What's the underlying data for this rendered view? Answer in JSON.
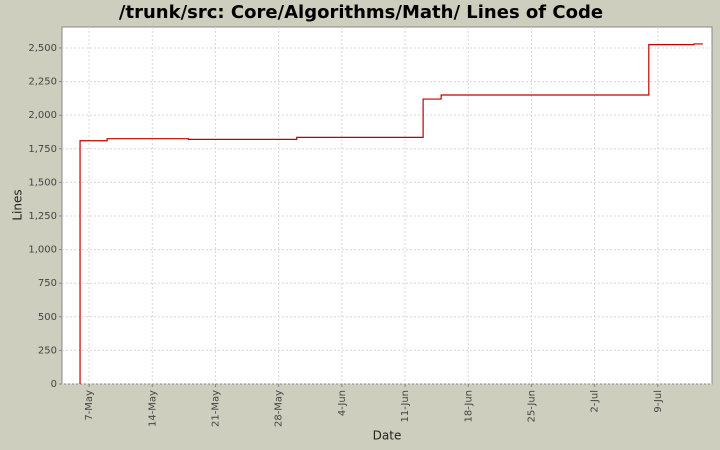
{
  "chart_data": {
    "type": "step",
    "title": "/trunk/src: Core/Algorithms/Math/ Lines of Code",
    "x_label": "Date",
    "y_label": "Lines",
    "x": [
      "6-May",
      "9-May",
      "18-May",
      "30-May",
      "13-Jun",
      "15-Jun",
      "8-Jul",
      "13-Jul",
      "14-Jul"
    ],
    "series": [
      {
        "name": "Lines",
        "color": "#c00000",
        "values": [
          1810,
          1825,
          1820,
          1835,
          2120,
          2150,
          2525,
          2530,
          2530
        ]
      }
    ],
    "xlim": [
      "4-May",
      "15-Jul"
    ],
    "xticks": [
      "7-May",
      "14-May",
      "21-May",
      "28-May",
      "4-Jun",
      "11-Jun",
      "18-Jun",
      "25-Jun",
      "2-Jul",
      "9-Jul"
    ],
    "ylim": [
      0,
      2656
    ],
    "yticks": [
      0,
      250,
      500,
      750,
      {
        "value": 1000,
        "label": "1,000"
      },
      {
        "value": 1250,
        "label": "1,250"
      },
      {
        "value": 1500,
        "label": "1,500"
      },
      {
        "value": 1750,
        "label": "1,750"
      },
      {
        "value": 2000,
        "label": "2,000"
      },
      {
        "value": 2250,
        "label": "2,250"
      },
      {
        "value": 2500,
        "label": "2,500"
      }
    ],
    "grid": true
  }
}
